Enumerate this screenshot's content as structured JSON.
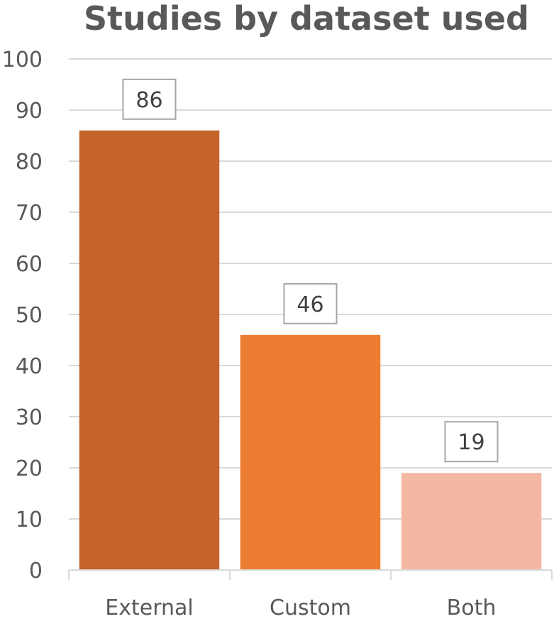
{
  "chart_data": {
    "type": "bar",
    "title": "Studies by dataset used",
    "categories": [
      "External",
      "Custom",
      "Both"
    ],
    "values": [
      86,
      46,
      19
    ],
    "data_labels": [
      "86",
      "46",
      "19"
    ],
    "colors": [
      "#c4632a",
      "#ed7d31",
      "#f4b8a2"
    ],
    "ylim": [
      0,
      100
    ],
    "yticks": [
      "0",
      "10",
      "20",
      "30",
      "40",
      "50",
      "60",
      "70",
      "80",
      "90",
      "100"
    ],
    "grid": true,
    "legend": "none"
  }
}
